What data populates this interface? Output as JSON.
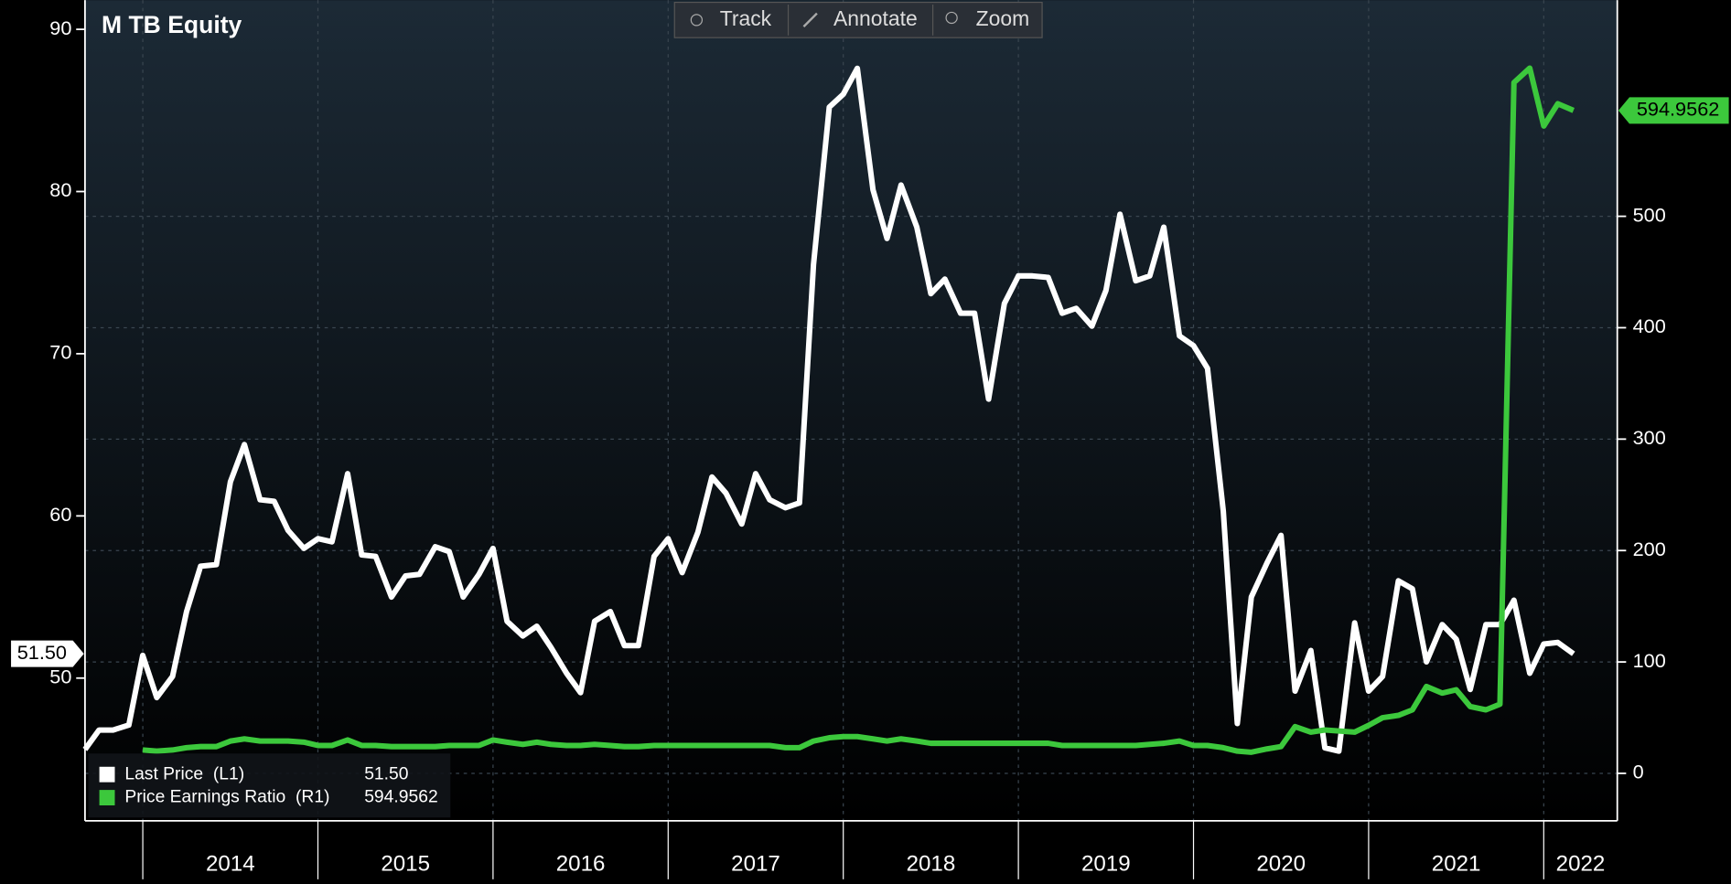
{
  "chart_data": {
    "type": "line",
    "title": "M TB Equity",
    "x": [
      2013.67,
      2013.75,
      2013.83,
      2013.92,
      2014.0,
      2014.08,
      2014.17,
      2014.25,
      2014.33,
      2014.42,
      2014.5,
      2014.58,
      2014.67,
      2014.75,
      2014.83,
      2014.92,
      2015.0,
      2015.08,
      2015.17,
      2015.25,
      2015.33,
      2015.42,
      2015.5,
      2015.58,
      2015.67,
      2015.75,
      2015.83,
      2015.92,
      2016.0,
      2016.08,
      2016.17,
      2016.25,
      2016.33,
      2016.42,
      2016.5,
      2016.58,
      2016.67,
      2016.75,
      2016.83,
      2016.92,
      2017.0,
      2017.08,
      2017.17,
      2017.25,
      2017.33,
      2017.42,
      2017.5,
      2017.58,
      2017.67,
      2017.75,
      2017.83,
      2017.92,
      2018.0,
      2018.08,
      2018.17,
      2018.25,
      2018.33,
      2018.42,
      2018.5,
      2018.58,
      2018.67,
      2018.75,
      2018.83,
      2018.92,
      2019.0,
      2019.08,
      2019.17,
      2019.25,
      2019.33,
      2019.42,
      2019.5,
      2019.58,
      2019.67,
      2019.75,
      2019.83,
      2019.92,
      2020.0,
      2020.08,
      2020.17,
      2020.25,
      2020.33,
      2020.42,
      2020.5,
      2020.58,
      2020.67,
      2020.75,
      2020.83,
      2020.92,
      2021.0,
      2021.08,
      2021.17,
      2021.25,
      2021.33,
      2021.42,
      2021.5,
      2021.58,
      2021.67,
      2021.75,
      2021.83,
      2021.92,
      2022.0,
      2022.08,
      2022.17
    ],
    "series": [
      {
        "name": "Last Price  (L1)",
        "color": "#ffffff",
        "axis": "y",
        "last_value_label": "51.50",
        "values": [
          45.6,
          46.8,
          46.8,
          47.1,
          51.4,
          48.8,
          50.1,
          54.1,
          56.9,
          57.0,
          62.1,
          64.4,
          61.0,
          60.9,
          59.1,
          58.0,
          58.6,
          58.4,
          62.6,
          57.6,
          57.5,
          55.0,
          56.3,
          56.4,
          58.1,
          57.8,
          55.0,
          56.4,
          58.0,
          53.5,
          52.6,
          53.2,
          51.9,
          50.3,
          49.1,
          53.5,
          54.1,
          52.0,
          52.0,
          57.5,
          58.6,
          56.5,
          59.0,
          62.4,
          61.4,
          59.5,
          62.6,
          61.0,
          60.5,
          60.8,
          75.5,
          85.2,
          86.0,
          87.6,
          80.1,
          77.1,
          80.4,
          77.8,
          73.7,
          74.6,
          72.5,
          72.5,
          67.2,
          73.1,
          74.8,
          74.8,
          74.7,
          72.5,
          72.8,
          71.7,
          73.9,
          78.6,
          74.5,
          74.8,
          77.8,
          71.1,
          70.5,
          69.1,
          60.3,
          47.2,
          55.0,
          57.1,
          58.8,
          49.2,
          51.7,
          45.7,
          45.5,
          53.4,
          49.2,
          50.1,
          56.0,
          55.5,
          51.0,
          53.3,
          52.4,
          49.3,
          53.3,
          53.3,
          54.8,
          50.3,
          52.1,
          52.2,
          51.5
        ]
      },
      {
        "name": "Price Earnings Ratio  (R1)",
        "color": "#3cc83c",
        "axis": "y2",
        "last_value_label": "594.9562",
        "values": [
          null,
          null,
          null,
          null,
          21,
          20,
          21,
          23,
          24,
          24,
          29,
          31,
          29,
          29,
          29,
          28,
          25,
          25,
          30,
          25,
          25,
          24,
          24,
          24,
          24,
          25,
          25,
          25,
          30,
          28,
          26,
          28,
          26,
          25,
          25,
          26,
          25,
          24,
          24,
          25,
          25,
          25,
          25,
          25,
          25,
          25,
          25,
          25,
          23,
          23,
          29,
          32,
          33,
          33,
          31,
          29,
          31,
          29,
          27,
          27,
          27,
          27,
          27,
          27,
          27,
          27,
          27,
          25,
          25,
          25,
          25,
          25,
          25,
          26,
          27,
          29,
          25,
          25,
          23,
          20,
          19,
          22,
          24,
          42,
          37,
          39,
          38,
          37,
          43,
          50,
          52,
          57,
          78,
          72,
          75,
          60,
          57,
          62,
          620,
          633,
          581,
          601,
          594.9562
        ]
      }
    ],
    "xlim": [
      2013.67,
      2022.42
    ],
    "xticks": [
      2014,
      2015,
      2016,
      2017,
      2018,
      2019,
      2020,
      2021,
      2022
    ],
    "ylim": [
      41.2,
      91.8
    ],
    "yticks": [
      50,
      60,
      70,
      80,
      90
    ],
    "y2lim": [
      -42.6,
      694
    ],
    "y2ticks": [
      0,
      100,
      200,
      300,
      400,
      500
    ],
    "grid": true,
    "legend": "lower left"
  },
  "toolbar": [
    "Track",
    "Annotate",
    "Zoom"
  ]
}
